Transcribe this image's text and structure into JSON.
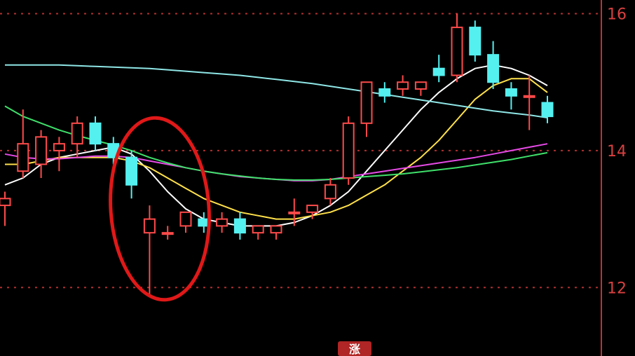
{
  "chart_data": {
    "type": "candlestick",
    "ylim": [
      11.0,
      16.2
    ],
    "y_ticks": [
      {
        "value": 16,
        "label": "16"
      },
      {
        "value": 14,
        "label": "14"
      },
      {
        "value": 12,
        "label": "12"
      }
    ],
    "bottom_badge": "涨",
    "colors": {
      "background": "#000000",
      "up": "#ff4a4a",
      "down": "#54f0f0",
      "grid": "#b03030",
      "axis": "#c03030",
      "highlight_circle": "#e01818"
    },
    "candles": [
      {
        "o": 13.2,
        "h": 13.4,
        "l": 12.9,
        "c": 13.3
      },
      {
        "o": 13.7,
        "h": 14.6,
        "l": 13.6,
        "c": 14.1
      },
      {
        "o": 13.8,
        "h": 14.3,
        "l": 13.6,
        "c": 14.2
      },
      {
        "o": 14.0,
        "h": 14.2,
        "l": 13.7,
        "c": 14.1
      },
      {
        "o": 14.1,
        "h": 14.5,
        "l": 13.9,
        "c": 14.4
      },
      {
        "o": 14.4,
        "h": 14.5,
        "l": 14.0,
        "c": 14.1
      },
      {
        "o": 14.1,
        "h": 14.2,
        "l": 13.8,
        "c": 13.9
      },
      {
        "o": 13.9,
        "h": 14.0,
        "l": 13.3,
        "c": 13.5
      },
      {
        "o": 12.8,
        "h": 13.2,
        "l": 11.9,
        "c": 13.0
      },
      {
        "o": 12.8,
        "h": 12.9,
        "l": 12.7,
        "c": 12.8
      },
      {
        "o": 12.9,
        "h": 13.1,
        "l": 12.8,
        "c": 13.1
      },
      {
        "o": 13.0,
        "h": 13.1,
        "l": 12.8,
        "c": 12.9
      },
      {
        "o": 12.9,
        "h": 13.1,
        "l": 12.8,
        "c": 13.0
      },
      {
        "o": 13.0,
        "h": 13.1,
        "l": 12.7,
        "c": 12.8
      },
      {
        "o": 12.8,
        "h": 12.9,
        "l": 12.7,
        "c": 12.9
      },
      {
        "o": 12.8,
        "h": 12.9,
        "l": 12.7,
        "c": 12.9
      },
      {
        "o": 13.1,
        "h": 13.3,
        "l": 12.9,
        "c": 13.1
      },
      {
        "o": 13.1,
        "h": 13.2,
        "l": 13.0,
        "c": 13.2
      },
      {
        "o": 13.3,
        "h": 13.6,
        "l": 13.2,
        "c": 13.5
      },
      {
        "o": 13.6,
        "h": 14.5,
        "l": 13.5,
        "c": 14.4
      },
      {
        "o": 14.4,
        "h": 15.0,
        "l": 14.2,
        "c": 15.0
      },
      {
        "o": 14.9,
        "h": 15.0,
        "l": 14.7,
        "c": 14.8
      },
      {
        "o": 14.9,
        "h": 15.1,
        "l": 14.8,
        "c": 15.0
      },
      {
        "o": 14.9,
        "h": 15.0,
        "l": 14.8,
        "c": 15.0
      },
      {
        "o": 15.2,
        "h": 15.4,
        "l": 15.0,
        "c": 15.1
      },
      {
        "o": 15.1,
        "h": 16.0,
        "l": 15.0,
        "c": 15.8
      },
      {
        "o": 15.8,
        "h": 15.9,
        "l": 15.3,
        "c": 15.4
      },
      {
        "o": 15.4,
        "h": 15.6,
        "l": 14.9,
        "c": 15.0
      },
      {
        "o": 14.9,
        "h": 15.0,
        "l": 14.6,
        "c": 14.8
      },
      {
        "o": 14.8,
        "h": 15.1,
        "l": 14.3,
        "c": 14.8
      },
      {
        "o": 14.7,
        "h": 14.8,
        "l": 14.4,
        "c": 14.5
      }
    ],
    "moving_averages": [
      {
        "color": "#ffffff",
        "values": [
          13.5,
          13.6,
          13.8,
          13.9,
          13.95,
          14.0,
          14.05,
          13.95,
          13.7,
          13.4,
          13.15,
          13.0,
          12.95,
          12.9,
          12.9,
          12.9,
          12.95,
          13.05,
          13.2,
          13.4,
          13.7,
          14.0,
          14.3,
          14.6,
          14.85,
          15.05,
          15.2,
          15.25,
          15.2,
          15.1,
          14.95
        ]
      },
      {
        "color": "#ffe14a",
        "values": [
          13.8,
          13.8,
          13.85,
          13.9,
          13.9,
          13.9,
          13.9,
          13.85,
          13.75,
          13.6,
          13.45,
          13.3,
          13.2,
          13.1,
          13.05,
          13.0,
          13.0,
          13.05,
          13.1,
          13.2,
          13.35,
          13.5,
          13.7,
          13.9,
          14.15,
          14.45,
          14.75,
          14.95,
          15.05,
          15.05,
          14.85
        ]
      },
      {
        "color": "#e64ae6",
        "values": [
          13.95,
          13.9,
          13.88,
          13.88,
          13.9,
          13.92,
          13.92,
          13.9,
          13.85,
          13.8,
          13.75,
          13.7,
          13.66,
          13.62,
          13.6,
          13.58,
          13.56,
          13.56,
          13.58,
          13.62,
          13.66,
          13.7,
          13.74,
          13.78,
          13.82,
          13.86,
          13.9,
          13.95,
          14.0,
          14.05,
          14.1
        ]
      },
      {
        "color": "#3fe06a",
        "values": [
          14.65,
          14.5,
          14.4,
          14.3,
          14.22,
          14.15,
          14.08,
          14.0,
          13.9,
          13.82,
          13.75,
          13.7,
          13.66,
          13.63,
          13.6,
          13.58,
          13.57,
          13.57,
          13.58,
          13.6,
          13.62,
          13.64,
          13.66,
          13.69,
          13.72,
          13.75,
          13.79,
          13.83,
          13.87,
          13.92,
          13.97
        ]
      },
      {
        "color": "#8fe6e6",
        "values": [
          15.25,
          15.25,
          15.25,
          15.25,
          15.24,
          15.23,
          15.22,
          15.21,
          15.2,
          15.18,
          15.16,
          15.14,
          15.12,
          15.1,
          15.07,
          15.04,
          15.01,
          14.98,
          14.94,
          14.9,
          14.86,
          14.82,
          14.78,
          14.74,
          14.7,
          14.66,
          14.62,
          14.58,
          14.55,
          14.52,
          14.48
        ]
      }
    ]
  }
}
